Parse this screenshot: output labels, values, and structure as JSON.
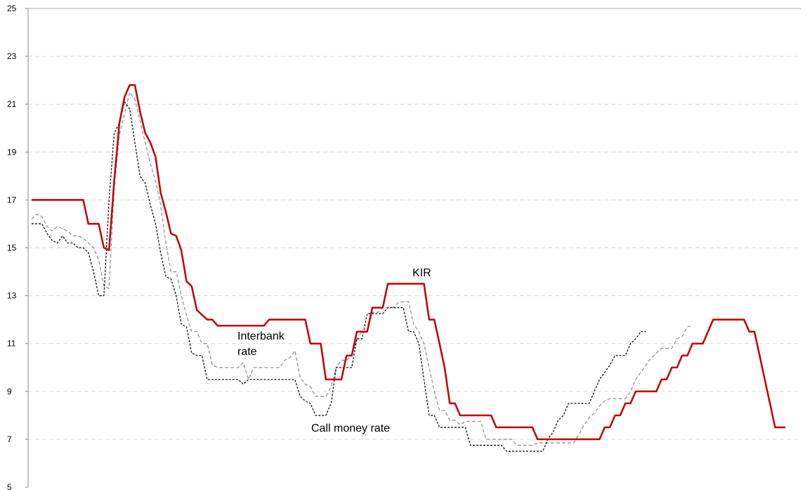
{
  "chart_data": {
    "type": "line",
    "title": "",
    "xlabel": "",
    "ylabel": "",
    "ylim": [
      5,
      25
    ],
    "yticks": [
      5,
      7,
      9,
      11,
      13,
      15,
      17,
      19,
      21,
      23,
      25
    ],
    "xlim": [
      0,
      140
    ],
    "grid": true,
    "legend": "none",
    "annotations": [
      {
        "text": "KIR",
        "series": "KIR"
      },
      {
        "text": "Interbank",
        "series": "Interbank rate"
      },
      {
        "text": "rate",
        "series": "Interbank rate"
      },
      {
        "text": "Call money rate",
        "series": "Call money rate"
      }
    ],
    "series": [
      {
        "name": "KIR",
        "color": "#c00000",
        "style": "solid",
        "points": [
          [
            0,
            17
          ],
          [
            10,
            17
          ],
          [
            11,
            16
          ],
          [
            13,
            16
          ],
          [
            14,
            15
          ],
          [
            15,
            14.9
          ],
          [
            16,
            17.8
          ],
          [
            17,
            20.2
          ],
          [
            18,
            21.3
          ],
          [
            19,
            21.8
          ],
          [
            20,
            21.8
          ],
          [
            21,
            20.7
          ],
          [
            22,
            19.8
          ],
          [
            23,
            19.4
          ],
          [
            24,
            18.8
          ],
          [
            25,
            17.3
          ],
          [
            26,
            16.5
          ],
          [
            27,
            15.6
          ],
          [
            28,
            15.5
          ],
          [
            29,
            14.9
          ],
          [
            30,
            13.6
          ],
          [
            31,
            13.4
          ],
          [
            32,
            12.4
          ],
          [
            33,
            12.2
          ],
          [
            34,
            12
          ],
          [
            35,
            12
          ],
          [
            36,
            11.75
          ],
          [
            45,
            11.75
          ],
          [
            46,
            12
          ],
          [
            53,
            12
          ],
          [
            54,
            11
          ],
          [
            56,
            11
          ],
          [
            57,
            9.5
          ],
          [
            60,
            9.5
          ],
          [
            61,
            10.5
          ],
          [
            62,
            10.5
          ],
          [
            63,
            11.5
          ],
          [
            65,
            11.5
          ],
          [
            66,
            12.5
          ],
          [
            68,
            12.5
          ],
          [
            69,
            13.5
          ],
          [
            76,
            13.5
          ],
          [
            77,
            12
          ],
          [
            78,
            12
          ],
          [
            79,
            11
          ],
          [
            80,
            10
          ],
          [
            81,
            8.5
          ],
          [
            82,
            8.5
          ],
          [
            83,
            8
          ],
          [
            89,
            8
          ],
          [
            90,
            7.5
          ],
          [
            97,
            7.5
          ],
          [
            98,
            7
          ],
          [
            110,
            7
          ],
          [
            111,
            7.5
          ],
          [
            112,
            7.5
          ],
          [
            113,
            8
          ],
          [
            114,
            8
          ],
          [
            115,
            8.5
          ],
          [
            116,
            8.5
          ],
          [
            117,
            9
          ],
          [
            121,
            9
          ],
          [
            122,
            9.5
          ],
          [
            123,
            9.5
          ],
          [
            124,
            10
          ],
          [
            125,
            10
          ],
          [
            126,
            10.5
          ],
          [
            127,
            10.5
          ],
          [
            128,
            11
          ],
          [
            130,
            11
          ],
          [
            131,
            11.5
          ],
          [
            132,
            12
          ],
          [
            138,
            12
          ],
          [
            139,
            11.5
          ],
          [
            140,
            11.5
          ],
          [
            141,
            10.5
          ],
          [
            142,
            9.5
          ],
          [
            143,
            8.5
          ],
          [
            144,
            7.5
          ],
          [
            146,
            7.5
          ]
        ]
      },
      {
        "name": "Interbank rate",
        "color": "#8c8c8c",
        "style": "dashed",
        "points": [
          [
            0,
            16.2
          ],
          [
            1,
            16.4
          ],
          [
            2,
            16.3
          ],
          [
            3,
            15.9
          ],
          [
            4,
            15.7
          ],
          [
            5,
            15.9
          ],
          [
            6,
            15.8
          ],
          [
            7,
            15.7
          ],
          [
            8,
            15.5
          ],
          [
            9,
            15.5
          ],
          [
            10,
            15.4
          ],
          [
            11,
            15.2
          ],
          [
            12,
            15
          ],
          [
            13,
            14.5
          ],
          [
            14,
            13.4
          ],
          [
            15,
            13.3
          ],
          [
            16,
            17.5
          ],
          [
            17,
            19.7
          ],
          [
            18,
            20.6
          ],
          [
            19,
            21.5
          ],
          [
            20,
            21.2
          ],
          [
            21,
            20.3
          ],
          [
            22,
            19.4
          ],
          [
            23,
            18.5
          ],
          [
            24,
            17.8
          ],
          [
            25,
            16.8
          ],
          [
            26,
            15.2
          ],
          [
            27,
            14
          ],
          [
            28,
            14
          ],
          [
            29,
            13
          ],
          [
            30,
            12.2
          ],
          [
            31,
            11.5
          ],
          [
            32,
            11.5
          ],
          [
            33,
            11
          ],
          [
            34,
            11
          ],
          [
            35,
            10.1
          ],
          [
            36,
            10
          ],
          [
            40,
            10
          ],
          [
            41,
            10.2
          ],
          [
            42,
            9.5
          ],
          [
            43,
            10
          ],
          [
            48,
            10
          ],
          [
            49,
            10.3
          ],
          [
            50,
            10.4
          ],
          [
            51,
            10.7
          ],
          [
            52,
            9.6
          ],
          [
            53,
            9.3
          ],
          [
            54,
            9.2
          ],
          [
            55,
            8.8
          ],
          [
            57,
            8.8
          ],
          [
            58,
            9.2
          ],
          [
            59,
            10
          ],
          [
            60,
            10.3
          ],
          [
            61,
            10.3
          ],
          [
            62,
            10.5
          ],
          [
            63,
            11.2
          ],
          [
            64,
            11.5
          ],
          [
            65,
            11.5
          ],
          [
            66,
            12.3
          ],
          [
            67,
            12.3
          ],
          [
            68,
            12.5
          ],
          [
            70,
            12.5
          ],
          [
            71,
            12.7
          ],
          [
            72,
            12.75
          ],
          [
            73,
            12.75
          ],
          [
            74,
            11.8
          ],
          [
            75,
            11.5
          ],
          [
            76,
            11
          ],
          [
            77,
            10
          ],
          [
            78,
            9
          ],
          [
            79,
            8.2
          ],
          [
            80,
            8.2
          ],
          [
            81,
            7.8
          ],
          [
            82,
            7.8
          ],
          [
            83,
            7.6
          ],
          [
            84,
            7.75
          ],
          [
            87,
            7.75
          ],
          [
            88,
            7
          ],
          [
            93,
            7
          ],
          [
            94,
            6.75
          ],
          [
            97,
            6.75
          ],
          [
            98,
            6.85
          ],
          [
            105,
            6.85
          ],
          [
            106,
            7.2
          ],
          [
            107,
            7.6
          ],
          [
            108,
            7.9
          ],
          [
            109,
            8.1
          ],
          [
            110,
            8.4
          ],
          [
            111,
            8.6
          ],
          [
            112,
            8.7
          ],
          [
            115,
            8.7
          ],
          [
            116,
            9
          ],
          [
            117,
            9.5
          ],
          [
            118,
            9.8
          ],
          [
            119,
            10.1
          ],
          [
            120,
            10.4
          ],
          [
            121,
            10.6
          ],
          [
            122,
            10.8
          ],
          [
            124,
            10.8
          ],
          [
            125,
            11.2
          ],
          [
            126,
            11.3
          ],
          [
            127,
            11.7
          ],
          [
            128,
            11.75
          ]
        ]
      },
      {
        "name": "Call money rate",
        "color": "#000000",
        "style": "dotted",
        "points": [
          [
            0,
            16
          ],
          [
            2,
            16
          ],
          [
            3,
            15.6
          ],
          [
            4,
            15.3
          ],
          [
            5,
            15.2
          ],
          [
            6,
            15.5
          ],
          [
            7,
            15.2
          ],
          [
            8,
            15.2
          ],
          [
            9,
            15
          ],
          [
            10,
            15
          ],
          [
            11,
            14.8
          ],
          [
            12,
            14
          ],
          [
            13,
            13
          ],
          [
            14,
            13
          ],
          [
            15,
            17
          ],
          [
            16,
            19.8
          ],
          [
            17,
            20.2
          ],
          [
            18,
            21.1
          ],
          [
            19,
            20.8
          ],
          [
            20,
            19.4
          ],
          [
            21,
            18
          ],
          [
            22,
            17.7
          ],
          [
            23,
            16.8
          ],
          [
            24,
            16
          ],
          [
            25,
            14.8
          ],
          [
            26,
            13.8
          ],
          [
            27,
            13.7
          ],
          [
            28,
            13
          ],
          [
            29,
            11.8
          ],
          [
            30,
            11.7
          ],
          [
            31,
            10.6
          ],
          [
            32,
            10.5
          ],
          [
            33,
            10.5
          ],
          [
            34,
            9.5
          ],
          [
            40,
            9.5
          ],
          [
            41,
            9.3
          ],
          [
            42,
            9.5
          ],
          [
            51,
            9.5
          ],
          [
            52,
            8.8
          ],
          [
            53,
            8.6
          ],
          [
            54,
            8.5
          ],
          [
            55,
            8
          ],
          [
            57,
            8
          ],
          [
            58,
            8.5
          ],
          [
            59,
            10
          ],
          [
            62,
            10
          ],
          [
            63,
            11.2
          ],
          [
            64,
            11.2
          ],
          [
            65,
            12.25
          ],
          [
            68,
            12.25
          ],
          [
            69,
            12.5
          ],
          [
            72,
            12.5
          ],
          [
            73,
            11.5
          ],
          [
            74,
            11.5
          ],
          [
            75,
            11
          ],
          [
            76,
            9.5
          ],
          [
            77,
            8
          ],
          [
            78,
            8
          ],
          [
            79,
            7.5
          ],
          [
            84,
            7.5
          ],
          [
            85,
            6.75
          ],
          [
            91,
            6.75
          ],
          [
            92,
            6.5
          ],
          [
            99,
            6.5
          ],
          [
            100,
            7
          ],
          [
            101,
            7.3
          ],
          [
            102,
            7.8
          ],
          [
            103,
            8
          ],
          [
            104,
            8.5
          ],
          [
            108,
            8.5
          ],
          [
            109,
            9
          ],
          [
            110,
            9.5
          ],
          [
            111,
            9.8
          ],
          [
            112,
            10.1
          ],
          [
            113,
            10.5
          ],
          [
            115,
            10.5
          ],
          [
            116,
            11
          ],
          [
            117,
            11.2
          ],
          [
            118,
            11.5
          ],
          [
            119,
            11.5
          ]
        ]
      }
    ]
  }
}
